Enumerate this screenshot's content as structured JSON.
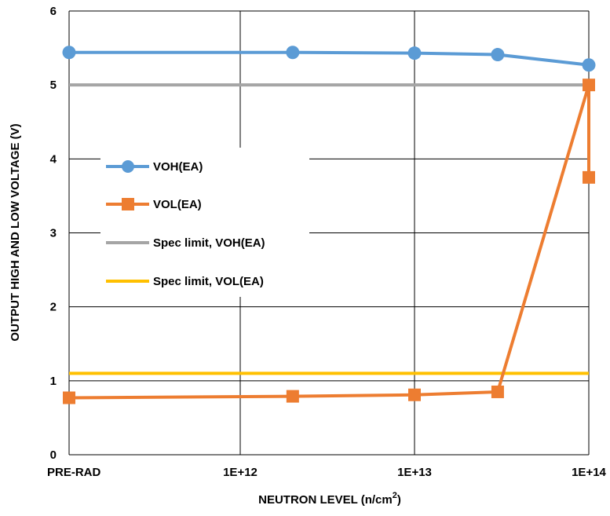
{
  "chart_data": {
    "type": "line",
    "x_scale": "categorical-log",
    "x_ticks": [
      "PRE-RAD",
      "1E+12",
      "1E+13",
      "1E+14"
    ],
    "xlabel_main": "NEUTRON LEVEL (n/cm",
    "xlabel_sup": "2",
    "xlabel_close": ")",
    "ylabel": "OUTPUT HIGH AND LOW VOLTAGE (V)",
    "ylim": [
      0,
      6
    ],
    "y_ticks": [
      "0",
      "1",
      "2",
      "3",
      "4",
      "5",
      "6"
    ],
    "grid": true,
    "legend_position": "left-middle",
    "series": [
      {
        "name": "VOH(EA)",
        "color": "#5B9BD5",
        "marker": "circle",
        "points": [
          {
            "x": "PRE-RAD",
            "y": 5.44
          },
          {
            "x": "2E+12",
            "y": 5.44
          },
          {
            "x": "1E+13",
            "y": 5.43
          },
          {
            "x": "3E+13",
            "y": 5.41
          },
          {
            "x": "1E+14",
            "y": 5.27
          }
        ]
      },
      {
        "name": "VOL(EA)",
        "color": "#ED7D31",
        "marker": "square",
        "points": [
          {
            "x": "PRE-RAD",
            "y": 0.77
          },
          {
            "x": "2E+12",
            "y": 0.79
          },
          {
            "x": "1E+13",
            "y": 0.81
          },
          {
            "x": "3E+13",
            "y": 0.85
          },
          {
            "x": "1E+14",
            "y": 5.0
          },
          {
            "x": "1E+14",
            "y": 3.75
          }
        ]
      },
      {
        "name": "Spec limit, VOH(EA)",
        "color": "#A5A5A5",
        "marker": "none",
        "constant": 5.0
      },
      {
        "name": "Spec limit, VOL(EA)",
        "color": "#FFC000",
        "marker": "none",
        "constant": 1.1
      }
    ]
  }
}
